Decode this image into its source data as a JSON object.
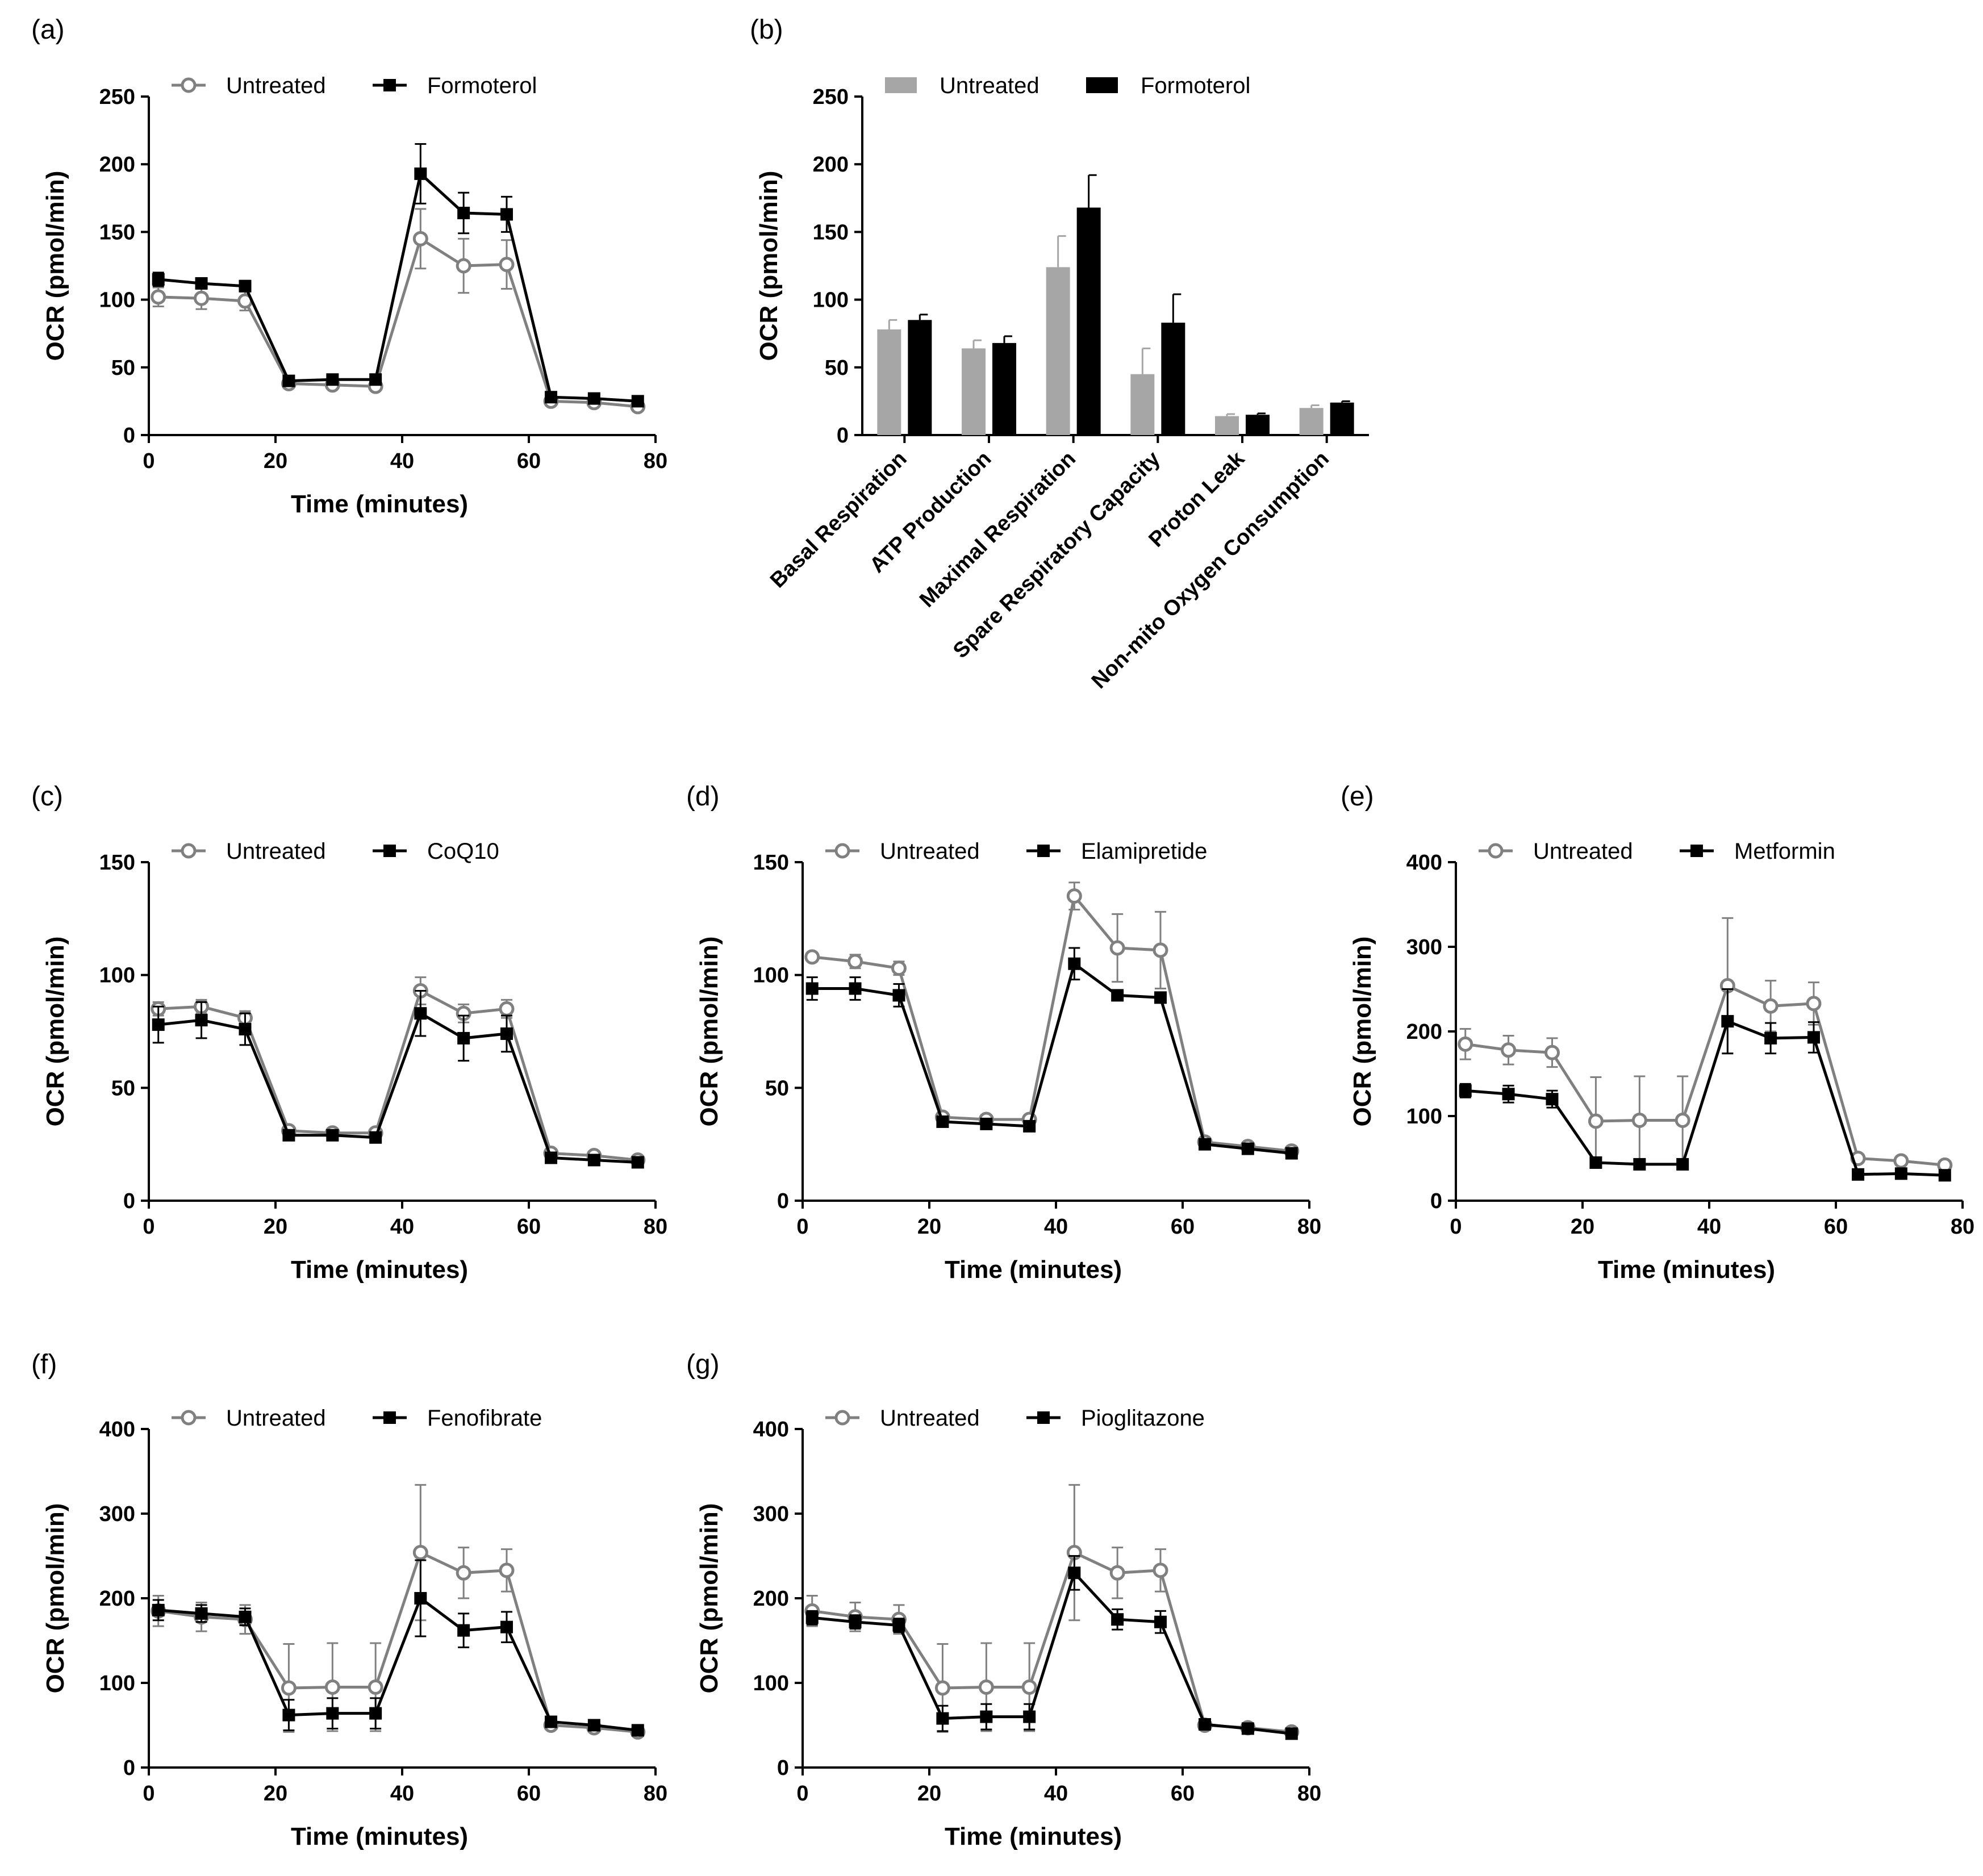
{
  "figure": {
    "colors": {
      "untreated_line": "#808080",
      "treated_line": "#000000",
      "untreated_bar": "#a6a6a6",
      "treated_bar": "#000000",
      "axis": "#000000"
    }
  },
  "chart_data": [
    {
      "id": "a",
      "panel_label": "(a)",
      "type": "line",
      "xlabel": "Time (minutes)",
      "ylabel": "OCR  (pmol/min)",
      "xlim": [
        0,
        80
      ],
      "ylim": [
        0,
        250
      ],
      "xticks": [
        0,
        20,
        40,
        60,
        80
      ],
      "yticks": [
        0,
        50,
        100,
        150,
        200,
        250
      ],
      "x": [
        1.5,
        8.3,
        15.2,
        22.1,
        29,
        35.8,
        42.9,
        49.7,
        56.5,
        63.5,
        70.3,
        77.2
      ],
      "legend": [
        "Untreated",
        "Formoterol"
      ],
      "series": [
        {
          "name": "Untreated",
          "style": "open-circle",
          "values": [
            102,
            101,
            99,
            38,
            37,
            36,
            145,
            125,
            126,
            25,
            24,
            21
          ],
          "errors": [
            7,
            8,
            7,
            3,
            3,
            3,
            22,
            20,
            18,
            3,
            3,
            3
          ]
        },
        {
          "name": "Formoterol",
          "style": "filled-square",
          "values": [
            115,
            112,
            110,
            40,
            41,
            41,
            193,
            164,
            163,
            28,
            27,
            25
          ],
          "errors": [
            5,
            4,
            4,
            3,
            3,
            3,
            22,
            15,
            13,
            3,
            3,
            3
          ]
        }
      ]
    },
    {
      "id": "b",
      "panel_label": "(b)",
      "type": "bar",
      "xlabel": "",
      "ylabel": "OCR  (pmol/min)",
      "ylim": [
        0,
        250
      ],
      "yticks": [
        0,
        50,
        100,
        150,
        200,
        250
      ],
      "legend": [
        "Untreated",
        "Formoterol"
      ],
      "categories": [
        "Basal Respiration",
        "ATP Production",
        "Maximal Respiration",
        "Spare Respiratory Capacity",
        "Proton Leak",
        "Non-mito Oxygen Consumption"
      ],
      "series": [
        {
          "name": "Untreated",
          "values": [
            78,
            64,
            124,
            45,
            14,
            20
          ],
          "errors": [
            7,
            6,
            23,
            19,
            1.5,
            2
          ]
        },
        {
          "name": "Formoterol",
          "values": [
            85,
            68,
            168,
            83,
            15,
            24
          ],
          "errors": [
            4,
            5,
            24,
            21,
            1,
            1
          ]
        }
      ]
    },
    {
      "id": "c",
      "panel_label": "(c)",
      "type": "line",
      "xlabel": "Time (minutes)",
      "ylabel": "OCR  (pmol/min)",
      "xlim": [
        0,
        80
      ],
      "ylim": [
        0,
        150
      ],
      "xticks": [
        0,
        20,
        40,
        60,
        80
      ],
      "yticks": [
        0,
        50,
        100,
        150
      ],
      "x": [
        1.5,
        8.3,
        15.2,
        22.1,
        29,
        35.8,
        42.9,
        49.7,
        56.5,
        63.5,
        70.3,
        77.2
      ],
      "legend": [
        "Untreated",
        "CoQ10"
      ],
      "series": [
        {
          "name": "Untreated",
          "style": "open-circle",
          "values": [
            85,
            86,
            81,
            31,
            30,
            30,
            93,
            83,
            85,
            21,
            20,
            18
          ],
          "errors": [
            3,
            3,
            3,
            2,
            2,
            2,
            6,
            4,
            4,
            2,
            2,
            1
          ]
        },
        {
          "name": "CoQ10",
          "style": "filled-square",
          "values": [
            78,
            80,
            76,
            29,
            29,
            28,
            83,
            72,
            74,
            19,
            18,
            17
          ],
          "errors": [
            8,
            8,
            7,
            2,
            2,
            2,
            10,
            10,
            8,
            2,
            2,
            1
          ]
        }
      ]
    },
    {
      "id": "d",
      "panel_label": "(d)",
      "type": "line",
      "xlabel": "Time (minutes)",
      "ylabel": "OCR  (pmol/min)",
      "xlim": [
        0,
        80
      ],
      "ylim": [
        0,
        150
      ],
      "xticks": [
        0,
        20,
        40,
        60,
        80
      ],
      "yticks": [
        0,
        50,
        100,
        150
      ],
      "x": [
        1.5,
        8.3,
        15.2,
        22.1,
        29,
        35.8,
        42.9,
        49.7,
        56.5,
        63.5,
        70.3,
        77.2
      ],
      "legend": [
        "Untreated",
        "Elamipretide"
      ],
      "series": [
        {
          "name": "Untreated",
          "style": "open-circle",
          "values": [
            108,
            106,
            103,
            37,
            36,
            36,
            135,
            112,
            111,
            26,
            24,
            22
          ],
          "errors": [
            2,
            3,
            3,
            2,
            2,
            2,
            6,
            15,
            17,
            2,
            2,
            2
          ]
        },
        {
          "name": "Elamipretide",
          "style": "filled-square",
          "values": [
            94,
            94,
            91,
            35,
            34,
            33,
            105,
            91,
            90,
            25,
            23,
            21
          ],
          "errors": [
            5,
            5,
            5,
            2,
            2,
            2,
            7,
            2,
            2,
            2,
            2,
            2
          ]
        }
      ]
    },
    {
      "id": "e",
      "panel_label": "(e)",
      "type": "line",
      "xlabel": "Time (minutes)",
      "ylabel": "OCR  (pmol/min)",
      "xlim": [
        0,
        80
      ],
      "ylim": [
        0,
        400
      ],
      "xticks": [
        0,
        20,
        40,
        60,
        80
      ],
      "yticks": [
        0,
        100,
        200,
        300,
        400
      ],
      "x": [
        1.5,
        8.3,
        15.2,
        22.1,
        29,
        35.8,
        42.9,
        49.7,
        56.5,
        63.5,
        70.3,
        77.2
      ],
      "legend": [
        "Untreated",
        "Metformin"
      ],
      "series": [
        {
          "name": "Untreated",
          "style": "open-circle",
          "values": [
            185,
            178,
            175,
            94,
            95,
            95,
            254,
            230,
            233,
            50,
            47,
            42
          ],
          "errors": [
            18,
            17,
            17,
            52,
            52,
            52,
            80,
            30,
            25,
            5,
            5,
            5
          ]
        },
        {
          "name": "Metformin",
          "style": "filled-square",
          "values": [
            130,
            126,
            120,
            45,
            43,
            43,
            212,
            192,
            193,
            31,
            32,
            30
          ],
          "errors": [
            8,
            10,
            10,
            5,
            5,
            5,
            38,
            18,
            18,
            4,
            4,
            4
          ]
        }
      ]
    },
    {
      "id": "f",
      "panel_label": "(f)",
      "type": "line",
      "xlabel": "Time (minutes)",
      "ylabel": "OCR  (pmol/min)",
      "xlim": [
        0,
        80
      ],
      "ylim": [
        0,
        400
      ],
      "xticks": [
        0,
        20,
        40,
        60,
        80
      ],
      "yticks": [
        0,
        100,
        200,
        300,
        400
      ],
      "x": [
        1.5,
        8.3,
        15.2,
        22.1,
        29,
        35.8,
        42.9,
        49.7,
        56.5,
        63.5,
        70.3,
        77.2
      ],
      "legend": [
        "Untreated",
        "Fenofibrate"
      ],
      "series": [
        {
          "name": "Untreated",
          "style": "open-circle",
          "values": [
            185,
            178,
            175,
            94,
            95,
            95,
            254,
            230,
            233,
            50,
            47,
            42
          ],
          "errors": [
            18,
            17,
            17,
            52,
            52,
            52,
            80,
            30,
            25,
            5,
            5,
            5
          ]
        },
        {
          "name": "Fenofibrate",
          "style": "filled-square",
          "values": [
            186,
            182,
            178,
            62,
            64,
            64,
            200,
            162,
            166,
            54,
            50,
            44
          ],
          "errors": [
            12,
            10,
            10,
            18,
            18,
            18,
            45,
            20,
            18,
            5,
            5,
            5
          ]
        }
      ]
    },
    {
      "id": "g",
      "panel_label": "(g)",
      "type": "line",
      "xlabel": "Time (minutes)",
      "ylabel": "OCR  (pmol/min)",
      "xlim": [
        0,
        80
      ],
      "ylim": [
        0,
        400
      ],
      "xticks": [
        0,
        20,
        40,
        60,
        80
      ],
      "yticks": [
        0,
        100,
        200,
        300,
        400
      ],
      "x": [
        1.5,
        8.3,
        15.2,
        22.1,
        29,
        35.8,
        42.9,
        49.7,
        56.5,
        63.5,
        70.3,
        77.2
      ],
      "legend": [
        "Untreated",
        "Pioglitazone"
      ],
      "series": [
        {
          "name": "Untreated",
          "style": "open-circle",
          "values": [
            185,
            178,
            175,
            94,
            95,
            95,
            254,
            230,
            233,
            50,
            47,
            42
          ],
          "errors": [
            18,
            17,
            17,
            52,
            52,
            52,
            80,
            30,
            25,
            5,
            5,
            5
          ]
        },
        {
          "name": "Pioglitazone",
          "style": "filled-square",
          "values": [
            177,
            172,
            168,
            58,
            60,
            60,
            230,
            175,
            172,
            51,
            46,
            40
          ],
          "errors": [
            8,
            8,
            8,
            15,
            15,
            15,
            20,
            12,
            13,
            4,
            4,
            4
          ]
        }
      ]
    }
  ]
}
